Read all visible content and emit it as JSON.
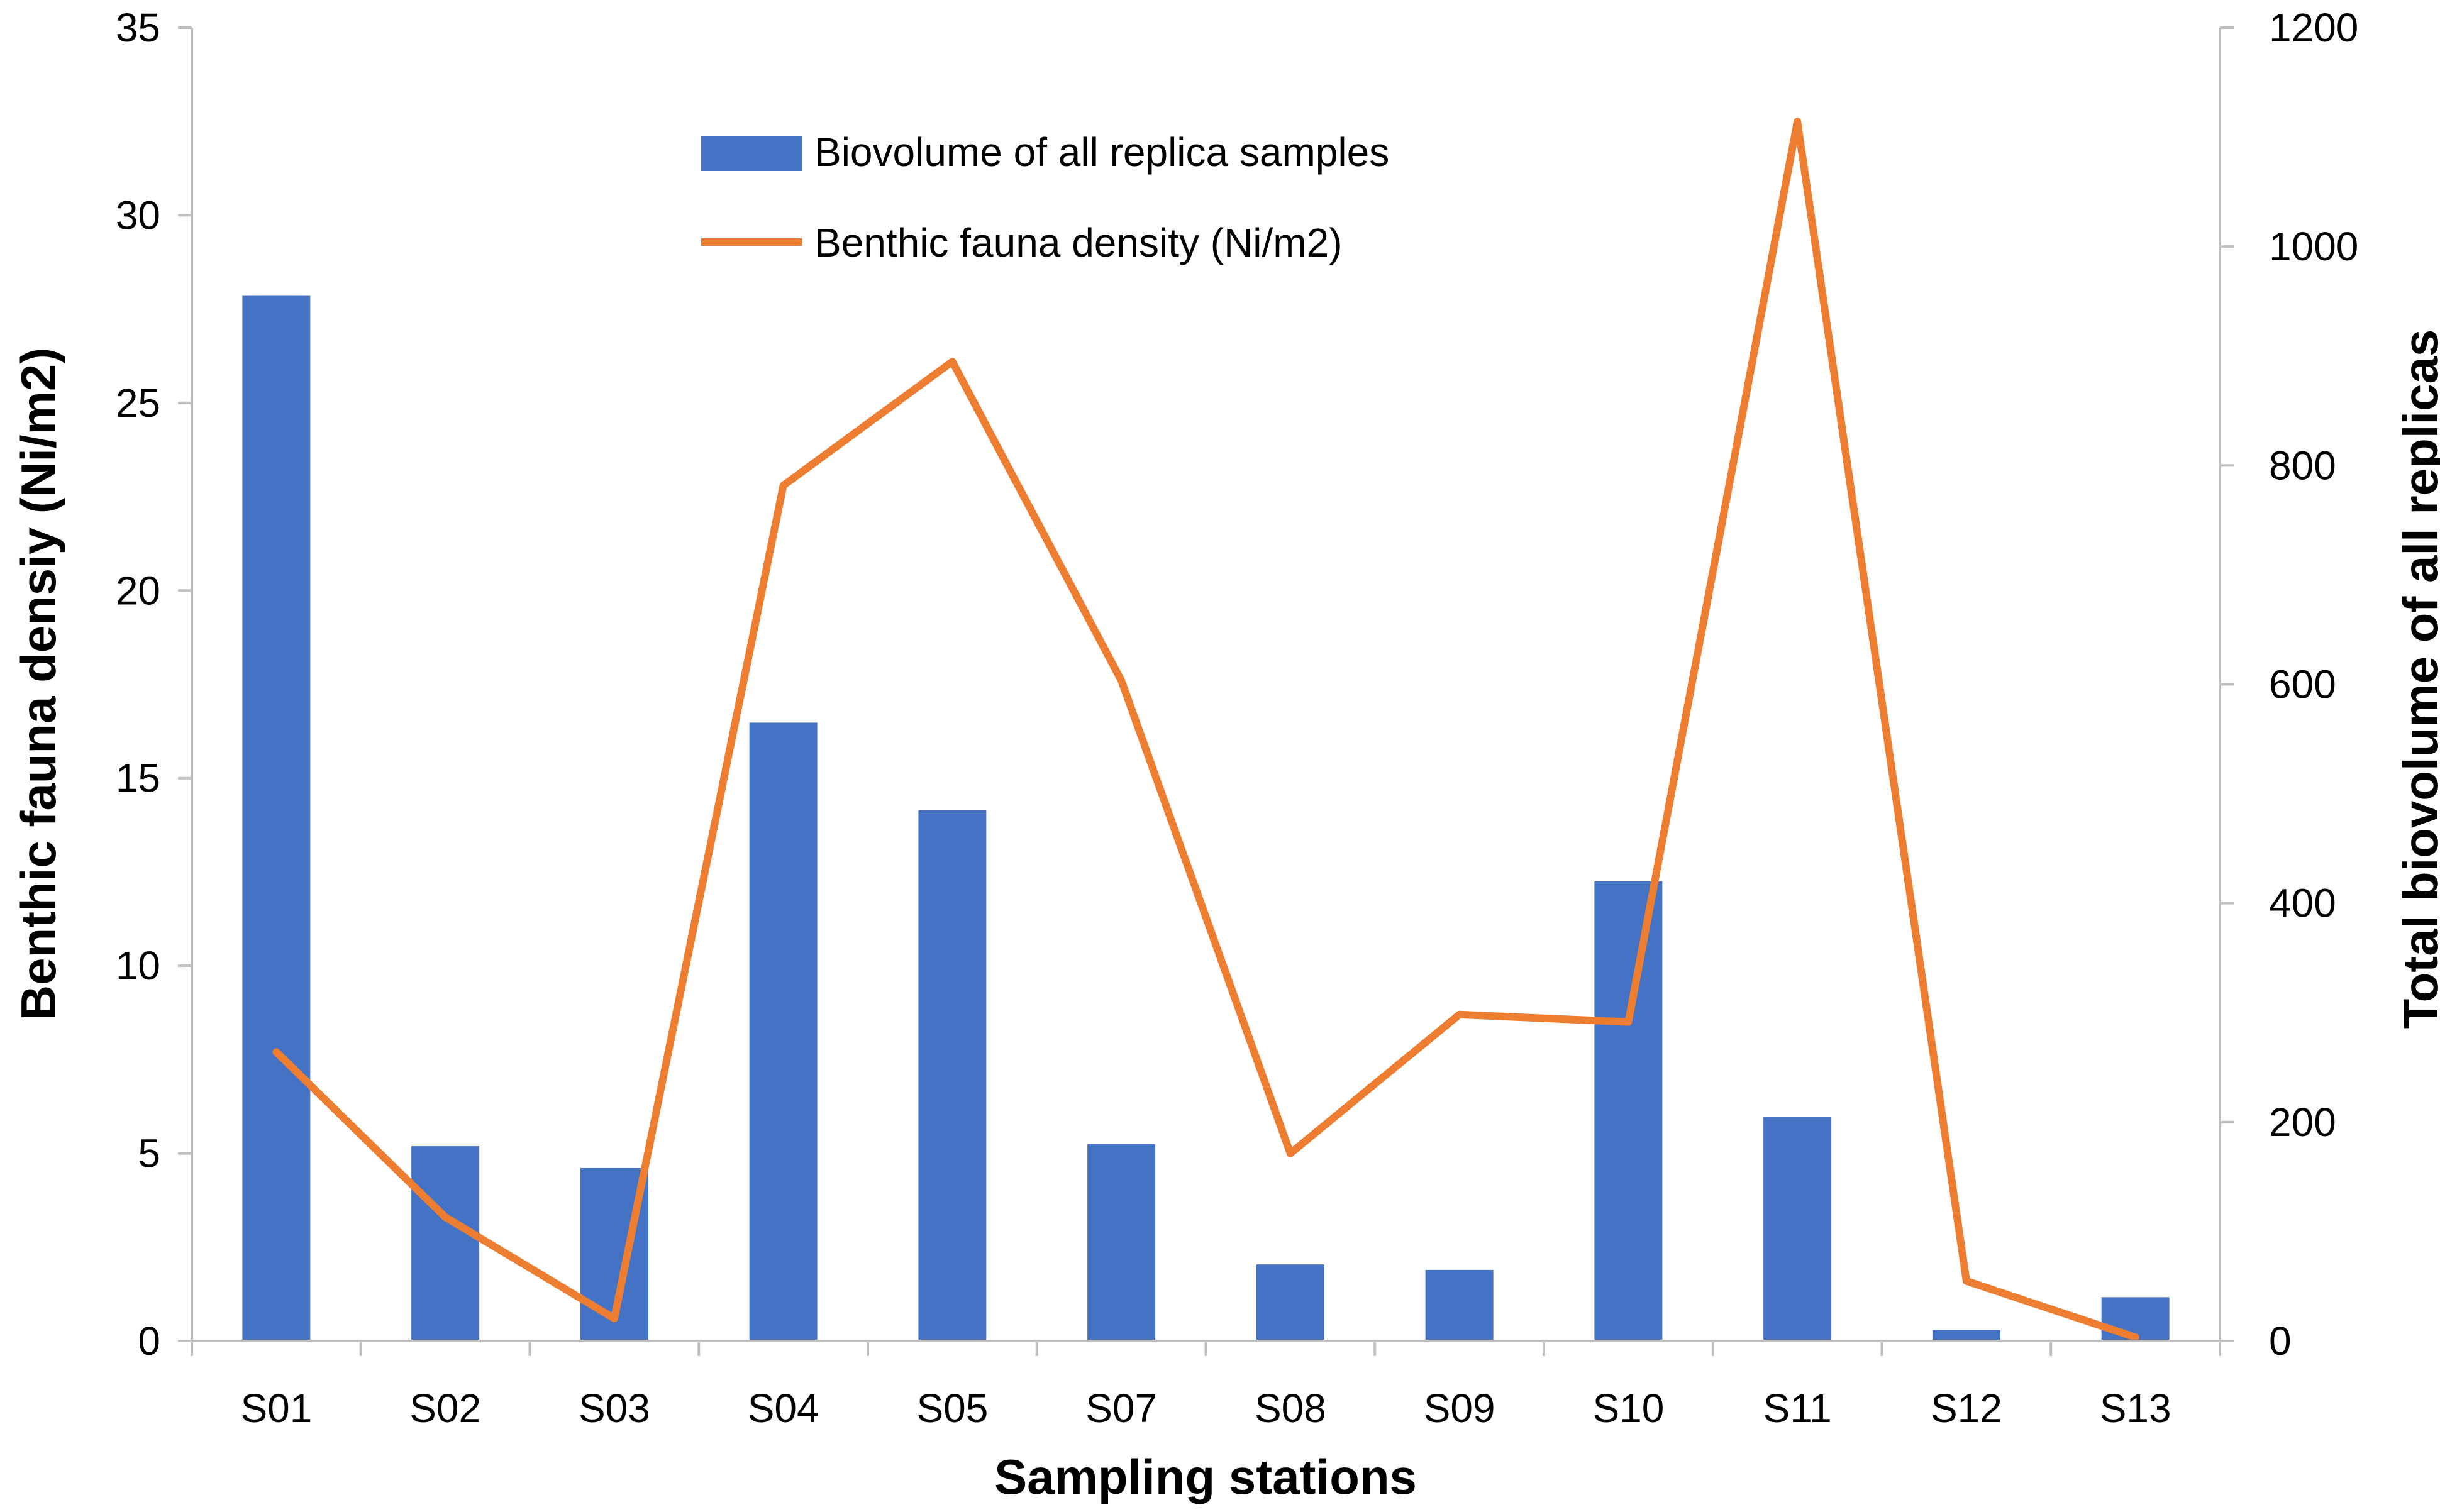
{
  "chart_data": {
    "type": "bar+line",
    "categories": [
      "S01",
      "S02",
      "S03",
      "S04",
      "S05",
      "S07",
      "S08",
      "S09",
      "S10",
      "S11",
      "S12",
      "S13"
    ],
    "series": [
      {
        "name": "Biovolume of all replica samples",
        "kind": "bar",
        "axis": "right",
        "color": "#4472C4",
        "values": [
          955,
          178,
          158,
          565,
          485,
          180,
          70,
          65,
          420,
          205,
          10,
          40
        ]
      },
      {
        "name": "Benthic fauna density (Ni/m2)",
        "kind": "line",
        "axis": "left",
        "color": "#ED7D31",
        "values": [
          7.7,
          3.3,
          0.6,
          22.8,
          26.1,
          17.6,
          5.0,
          8.7,
          8.5,
          32.5,
          1.6,
          0.1
        ]
      }
    ],
    "left_axis": {
      "label": "Benthic fauna densiy (Ni/m2)",
      "min": 0,
      "max": 35,
      "ticks": [
        "0",
        "5",
        "10",
        "15",
        "20",
        "25",
        "30",
        "35"
      ]
    },
    "right_axis": {
      "label": "Total biovolume of all replicas",
      "min": 0,
      "max": 1200,
      "ticks": [
        "0",
        "200",
        "400",
        "600",
        "800",
        "1000",
        "1200"
      ]
    },
    "xlabel": "Sampling stations",
    "grid": false,
    "legend_position": "top-center"
  }
}
